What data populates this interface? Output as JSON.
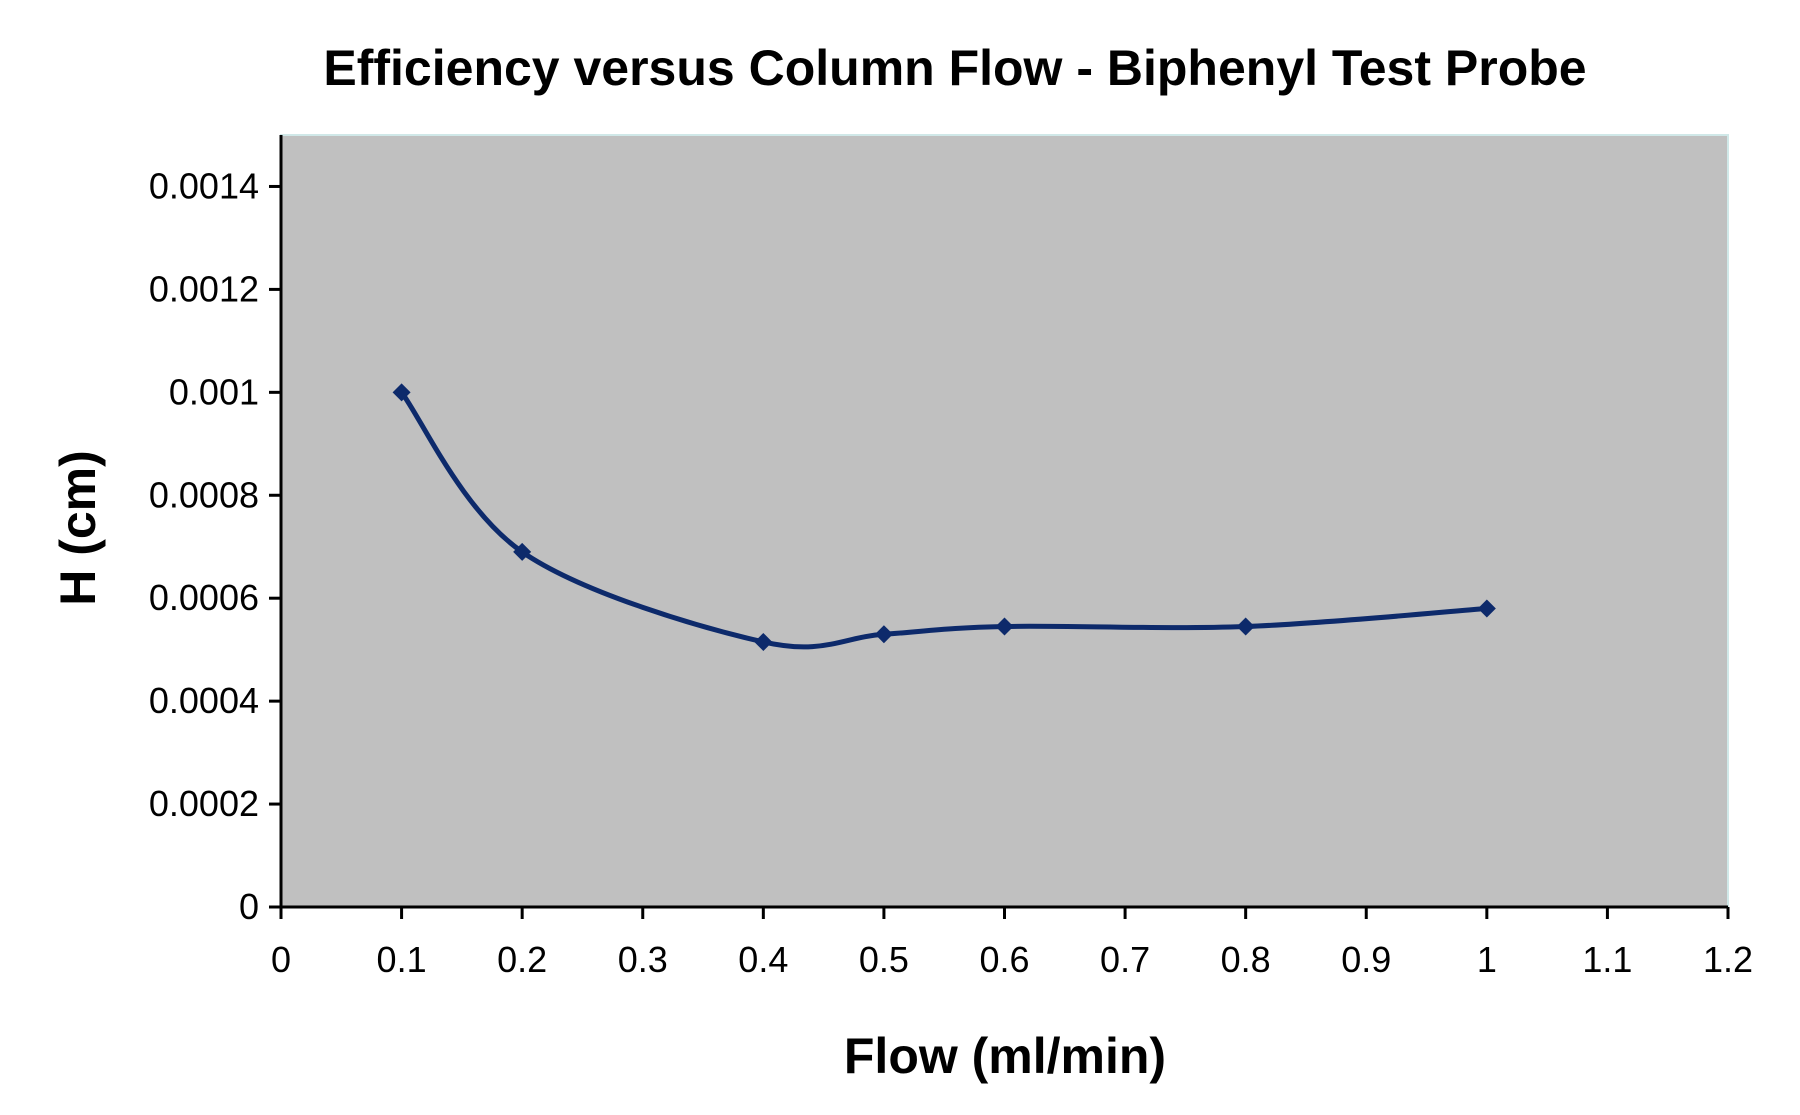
{
  "chart_data": {
    "type": "line",
    "title": "Efficiency versus Column Flow - Biphenyl Test Probe",
    "xlabel": "Flow (ml/min)",
    "ylabel": "H (cm)",
    "xlim": [
      0,
      1.2
    ],
    "ylim": [
      0,
      0.0015
    ],
    "x_ticks": [
      "0",
      "0.1",
      "0.2",
      "0.3",
      "0.4",
      "0.5",
      "0.6",
      "0.7",
      "0.8",
      "0.9",
      "1",
      "1.1",
      "1.2"
    ],
    "y_ticks": [
      "0",
      "0.0002",
      "0.0004",
      "0.0006",
      "0.0008",
      "0.001",
      "0.0012",
      "0.0014"
    ],
    "grid": false,
    "legend": "none",
    "plot_background": "#c0c0c0",
    "series": [
      {
        "color": "#0d2a6b",
        "marker": "diamond",
        "smooth": true,
        "x": [
          0.1,
          0.2,
          0.4,
          0.5,
          0.6,
          0.8,
          1.0
        ],
        "y": [
          0.001,
          0.00069,
          0.000515,
          0.00053,
          0.000545,
          0.000545,
          0.00058
        ]
      }
    ]
  }
}
